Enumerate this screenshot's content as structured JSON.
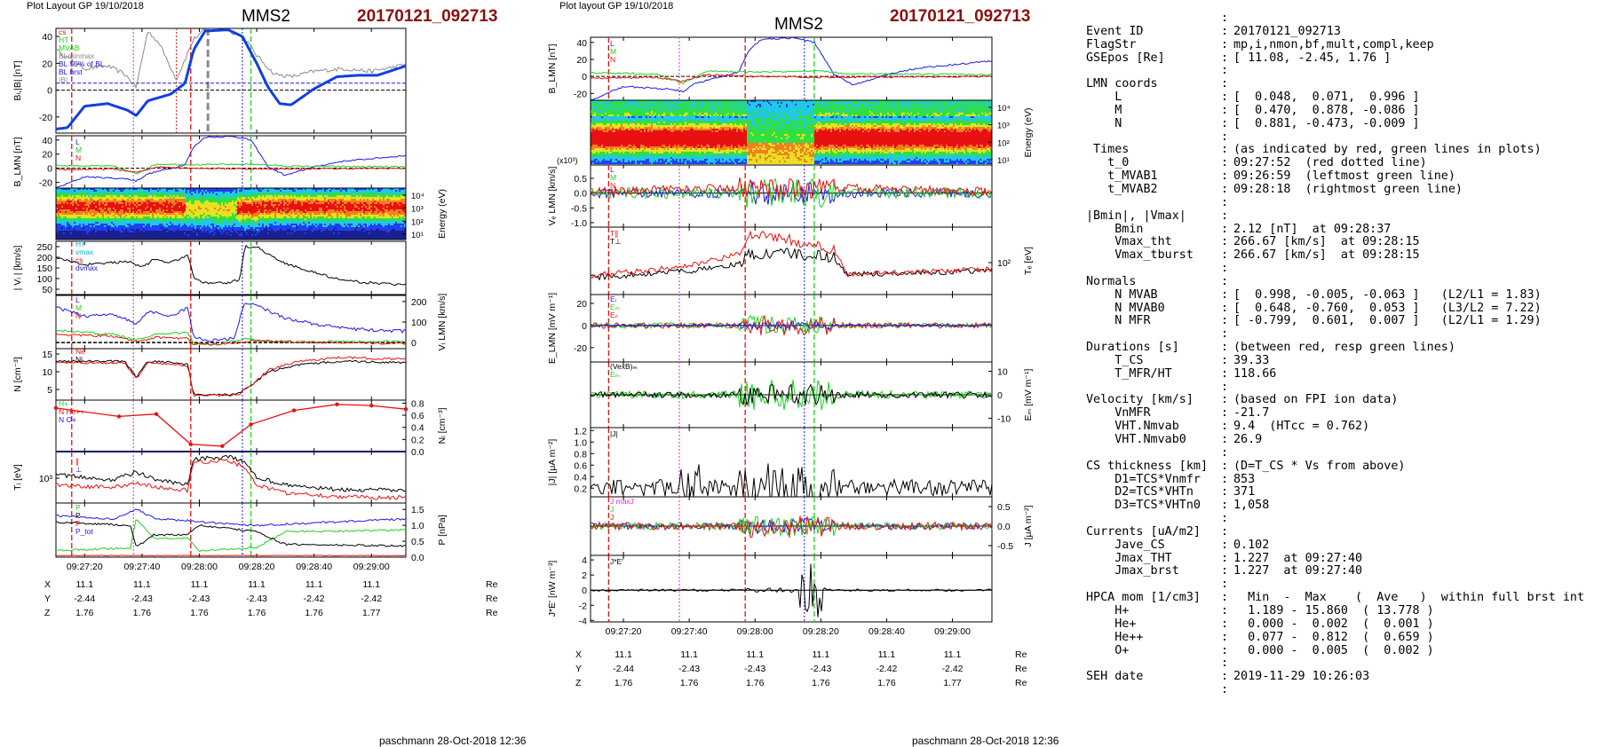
{
  "left_header": {
    "layout": "Plot Layout GP 19/10/2018",
    "spacecraft": "MMS2",
    "event": "20170121_092713",
    "footer": "paschmann 28-Oct-2018 12:36"
  },
  "mid_header": {
    "layout": "Plot layout GP 19/10/2018",
    "spacecraft": "MMS2",
    "event": "20170121_092713",
    "footer": "paschmann 28-Oct-2018 12:36"
  },
  "colors": {
    "red": "#e8100e",
    "green": "#1fd11f",
    "blue": "#1a1ae6",
    "black": "#000000",
    "gray": "#8a8a8a",
    "magenta": "#cc33cc",
    "cyan": "#00b0d0",
    "thick_blue": "#1040e0",
    "title_red": "#8b1010"
  },
  "time_ticks": [
    "09:27:20",
    "09:27:40",
    "09:28:00",
    "09:28:20",
    "09:28:40",
    "09:29:00"
  ],
  "position_table": {
    "rows": [
      {
        "label": "X",
        "values": [
          "11.1",
          "11.1",
          "11.1",
          "11.1",
          "11.1",
          "11.1"
        ],
        "unit": "Re"
      },
      {
        "label": "Y",
        "values": [
          "-2.44",
          "-2.43",
          "-2.43",
          "-2.43",
          "-2.42",
          "-2.42"
        ],
        "unit": "Re"
      },
      {
        "label": "Z",
        "values": [
          "1.76",
          "1.76",
          "1.76",
          "1.76",
          "1.76",
          "1.77"
        ],
        "unit": "Re"
      }
    ]
  },
  "chart_data": [
    {
      "type": "line",
      "panel_set": "left",
      "panels": [
        {
          "ylabel": "Bₗ,|B| [nT]",
          "ticks": [
            "40",
            "20",
            "0",
            "-20"
          ],
          "ylim": [
            -32,
            46
          ],
          "legend": [
            "cs",
            "HT",
            "MVAB",
            "BLminmax",
            "BL 50% of BL",
            "BL brst",
            "|B|"
          ]
        },
        {
          "ylabel": "B_LMN [nT]",
          "ticks": [
            "40",
            "20",
            "0",
            "-20"
          ],
          "ylim": [
            -28,
            46
          ],
          "legend": [
            "L",
            "M",
            "N"
          ]
        },
        {
          "ylabel": "Energy (eV)",
          "ticks": [
            "10⁴",
            "10³",
            "10²",
            "10¹"
          ],
          "type": "heatmap"
        },
        {
          "ylabel": "| Vᵢ | [km/s]",
          "ticks": [
            "250",
            "200",
            "150",
            "100",
            "50"
          ],
          "ylim": [
            25,
            275
          ],
          "legend": [
            "HT",
            "vmax",
            "cs",
            "dvmax"
          ]
        },
        {
          "ylabel": "Vᵢ LMN [km/s]",
          "ticks": [
            "200",
            "100",
            "0"
          ],
          "ylim": [
            -30,
            230
          ],
          "legend": [
            "L",
            "M",
            "N"
          ]
        },
        {
          "ylabel": "N [cm⁻³]",
          "ticks": [
            "15",
            "10",
            "5"
          ],
          "ylim": [
            2,
            16.5
          ],
          "legend": [
            "Ne",
            "Ni"
          ]
        },
        {
          "ylabel": "Nᵢ [cm⁻³]",
          "ticks": [
            "0.8",
            "0.6",
            "0.4",
            "0.2",
            "0.0"
          ],
          "ylim": [
            0,
            0.85
          ],
          "legend": [
            "H+",
            "N He++",
            "N O+"
          ],
          "series": [
            {
              "name": "N He++",
              "x": [
                "09:27:10",
                "09:27:32",
                "09:27:45",
                "09:27:57",
                "09:28:08",
                "09:28:18",
                "09:28:33",
                "09:28:48",
                "09:29:00",
                "09:29:12"
              ],
              "values": [
                0.72,
                0.58,
                0.62,
                0.12,
                0.09,
                0.45,
                0.68,
                0.78,
                0.76,
                0.7
              ]
            }
          ]
        },
        {
          "ylabel": "Tᵢ [eV]",
          "ticks": [
            "10³"
          ],
          "legend": [
            "∥",
            "⊥"
          ]
        },
        {
          "ylabel": "P [nPa]",
          "ticks": [
            "1.5",
            "1.0",
            "0.5",
            "0.0"
          ],
          "ylim": [
            0,
            1.7
          ],
          "legend": [
            "P",
            "P",
            "P",
            "P_tot"
          ]
        }
      ]
    },
    {
      "type": "line",
      "panel_set": "middle",
      "panels": [
        {
          "ylabel": "B_LMN [nT]",
          "ticks": [
            "40",
            "20",
            "0",
            "-20"
          ],
          "ylim": [
            -28,
            46
          ],
          "legend": [
            "L",
            "M",
            "N"
          ]
        },
        {
          "ylabel": "Energy (eV)",
          "ticks": [
            "10⁴",
            "10³",
            "10²",
            "10¹"
          ],
          "type": "heatmap"
        },
        {
          "ylabel": "Vₑ LMN [km/s]",
          "ticks": [
            "0.5",
            "0.0",
            "-0.5",
            "-1.0"
          ],
          "ylim": [
            -1.15,
            0.95
          ],
          "legend": [
            "L",
            "M",
            "N"
          ]
        },
        {
          "ylabel": "Tₑ [eV]",
          "ticks": [
            "10²"
          ],
          "legend": [
            "T∥",
            "T⊥"
          ]
        },
        {
          "ylabel": "E_LMN [mV m⁻¹]",
          "ticks": [
            "20",
            "0",
            "-20"
          ],
          "ylim": [
            -33,
            28
          ],
          "legend": [
            "Eₗ",
            "Eₘ",
            "Eₙ"
          ]
        },
        {
          "ylabel": "Eₘ [mV m⁻¹]",
          "ticks": [
            "10",
            "0",
            "-10"
          ],
          "ylim": [
            -14,
            14
          ],
          "legend": [
            "(VexB)ₘ",
            "Eₘ"
          ]
        },
        {
          "ylabel": "|J| [μA m⁻²]",
          "ticks": [
            "1.2",
            "1.0",
            "0.8",
            "0.6",
            "0.4",
            "0.2"
          ],
          "ylim": [
            0.05,
            1.25
          ],
          "legend": [
            "|J|"
          ]
        },
        {
          "ylabel": "J [μA m⁻²]",
          "ticks": [
            "0.5",
            "0.0",
            "-0.5"
          ],
          "ylim": [
            -0.75,
            0.75
          ],
          "legend": [
            "J maxJ",
            "J",
            "J"
          ]
        },
        {
          "ylabel": "J*E' [nW m⁻³]",
          "ticks": [
            "4",
            "2",
            "0",
            "-2",
            "-4"
          ],
          "ylim": [
            -4.2,
            4.6
          ],
          "legend": [
            "J*E'"
          ]
        }
      ]
    }
  ],
  "info_panel": {
    "lines": [
      {
        "k": "",
        "c": ":",
        "v": ""
      },
      {
        "k": "Event ID",
        "c": ":",
        "v": "20170121_092713"
      },
      {
        "k": "FlagStr",
        "c": ":",
        "v": "mp,i,nmon,bf,mult,compl,keep"
      },
      {
        "k": "GSEpos [Re]",
        "c": ":",
        "v": "[ 11.08, -2.45, 1.76 ]"
      },
      {
        "k": "",
        "c": ":",
        "v": ""
      },
      {
        "k": "LMN coords",
        "c": ":",
        "v": ""
      },
      {
        "k": "    L",
        "c": ":",
        "v": "[  0.048,  0.071,  0.996 ]"
      },
      {
        "k": "    M",
        "c": ":",
        "v": "[  0.470,  0.878, -0.086 ]"
      },
      {
        "k": "    N",
        "c": ":",
        "v": "[  0.881, -0.473, -0.009 ]"
      },
      {
        "k": "",
        "c": ":",
        "v": ""
      },
      {
        "k": " Times",
        "c": ":",
        "v": "(as indicated by red, green lines in plots)"
      },
      {
        "k": "   t_0",
        "c": ":",
        "v": "09:27:52  (red dotted line)"
      },
      {
        "k": "   t_MVAB1",
        "c": ":",
        "v": "09:26:59  (leftmost green line)"
      },
      {
        "k": "   t_MVAB2",
        "c": ":",
        "v": "09:28:18  (rightmost green line)"
      },
      {
        "k": "",
        "c": ":",
        "v": ""
      },
      {
        "k": "|Bmin|, |Vmax|",
        "c": ":",
        "v": ""
      },
      {
        "k": "    Bmin",
        "c": ":",
        "v": "2.12 [nT]  at 09:28:37"
      },
      {
        "k": "    Vmax_tht",
        "c": ":",
        "v": "266.67 [km/s]  at 09:28:15"
      },
      {
        "k": "    Vmax_tburst",
        "c": ":",
        "v": "266.67 [km/s]  at 09:28:15"
      },
      {
        "k": "",
        "c": ":",
        "v": ""
      },
      {
        "k": "Normals",
        "c": ":",
        "v": ""
      },
      {
        "k": "    N MVAB",
        "c": ":",
        "v": "[  0.998, -0.005, -0.063 ]   (L2/L1 = 1.83)"
      },
      {
        "k": "    N MVAB0",
        "c": ":",
        "v": "[  0.648, -0.760,  0.053 ]   (L3/L2 = 7.22)"
      },
      {
        "k": "    N MFR",
        "c": ":",
        "v": "[ -0.799,  0.601,  0.007 ]   (L2/L1 = 1.29)"
      },
      {
        "k": "",
        "c": ":",
        "v": ""
      },
      {
        "k": "Durations [s]",
        "c": ":",
        "v": "(between red, resp green lines)"
      },
      {
        "k": "    T_CS",
        "c": ":",
        "v": "39.33"
      },
      {
        "k": "    T_MFR/HT",
        "c": ":",
        "v": "118.66"
      },
      {
        "k": "",
        "c": ":",
        "v": ""
      },
      {
        "k": "Velocity [km/s]",
        "c": ":",
        "v": "(based on FPI ion data)"
      },
      {
        "k": "    VnMFR",
        "c": ":",
        "v": "-21.7"
      },
      {
        "k": "    VHT.Nmvab",
        "c": ":",
        "v": "9.4  (HTcc = 0.762)"
      },
      {
        "k": "    VHT.Nmvab0",
        "c": ":",
        "v": "26.9"
      },
      {
        "k": "",
        "c": ":",
        "v": ""
      },
      {
        "k": "CS thickness [km]",
        "c": ":",
        "v": "(D=T_CS * Vs from above)"
      },
      {
        "k": "    D1=TCS*Vnmfr",
        "c": ":",
        "v": "853"
      },
      {
        "k": "    D2=TCS*VHTn",
        "c": ":",
        "v": "371"
      },
      {
        "k": "    D3=TCS*VHTn0",
        "c": ":",
        "v": "1,058"
      },
      {
        "k": "",
        "c": ":",
        "v": ""
      },
      {
        "k": "Currents [uA/m2]",
        "c": ":",
        "v": ""
      },
      {
        "k": "    Jave_CS",
        "c": ":",
        "v": "0.102"
      },
      {
        "k": "    Jmax_THT",
        "c": ":",
        "v": "1.227  at 09:27:40"
      },
      {
        "k": "    Jmax_brst",
        "c": ":",
        "v": "1.227  at 09:27:40"
      },
      {
        "k": "",
        "c": ":",
        "v": ""
      },
      {
        "k": "HPCA mom [1/cm3]",
        "c": ":",
        "v": "  Min  -  Max    (  Ave   )  within full brst int"
      },
      {
        "k": "    H+",
        "c": ":",
        "v": "  1.189 - 15.860  ( 13.778 )"
      },
      {
        "k": "    He+",
        "c": ":",
        "v": "  0.000 -  0.002  (  0.001 )"
      },
      {
        "k": "    He++",
        "c": ":",
        "v": "  0.077 -  0.812  (  0.659 )"
      },
      {
        "k": "    O+",
        "c": ":",
        "v": "  0.000 -  0.005  (  0.002 )"
      },
      {
        "k": "",
        "c": ":",
        "v": ""
      },
      {
        "k": "SEH date",
        "c": ":",
        "v": "2019-11-29 10:26:03"
      },
      {
        "k": "",
        "c": ":",
        "v": ""
      }
    ]
  }
}
